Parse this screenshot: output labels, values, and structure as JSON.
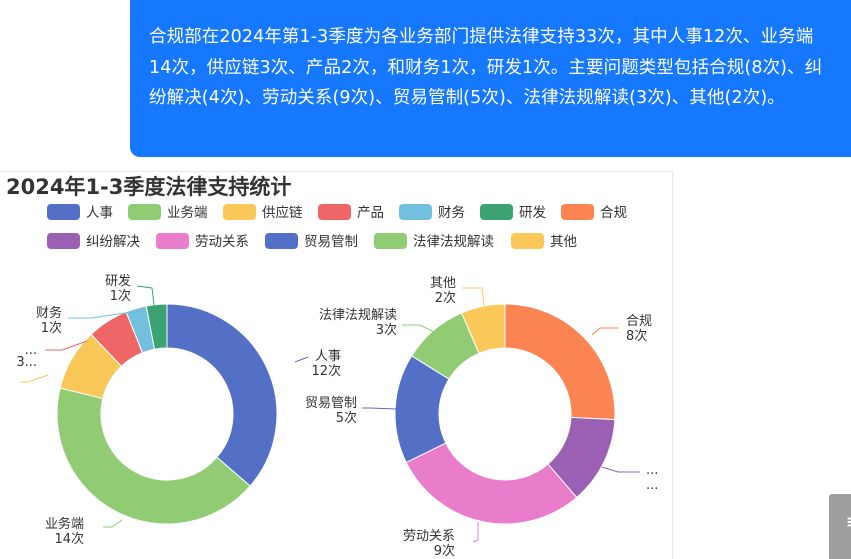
{
  "message": {
    "text": "合规部在2024年第1-3季度为各业务部门提供法律支持33次，其中人事12次、业务端14次，供应链3次、产品2次，和财务1次，研发1次。主要问题类型包括合规(8次)、纠纷解决(4次)、劳动关系(9次)、贸易管制(5次)、法律法规解读(3次)、其他(2次)。"
  },
  "chart_data": {
    "type": "pie",
    "title": "2024年1-3季度法律支持统计",
    "value_suffix": "次",
    "pies": [
      {
        "name": "",
        "slices": [
          {
            "label": "人事",
            "value": 12,
            "color": "#5470c6"
          },
          {
            "label": "业务端",
            "value": 14,
            "color": "#91cc75"
          },
          {
            "label": "供应链",
            "value": 3,
            "color": "#fac858"
          },
          {
            "label": "产品",
            "value": 2,
            "color": "#ee6666"
          },
          {
            "label": "财务",
            "value": 1,
            "color": "#73c0de"
          },
          {
            "label": "研发",
            "value": 1,
            "color": "#3ba272"
          }
        ]
      },
      {
        "name": "",
        "slices": [
          {
            "label": "合规",
            "value": 8,
            "color": "#fc8452"
          },
          {
            "label": "纠纷解决",
            "value": 4,
            "color": "#9a60b4"
          },
          {
            "label": "劳动关系",
            "value": 9,
            "color": "#ea7ccc"
          },
          {
            "label": "贸易管制",
            "value": 5,
            "color": "#5470c6"
          },
          {
            "label": "法律法规解读",
            "value": 3,
            "color": "#91cc75"
          },
          {
            "label": "其他",
            "value": 2,
            "color": "#fac858"
          }
        ]
      }
    ],
    "legend": {
      "placement": "top",
      "rows": [
        [
          {
            "label": "人事",
            "color": "#5470c6"
          },
          {
            "label": "业务端",
            "color": "#91cc75"
          },
          {
            "label": "供应链",
            "color": "#fac858"
          },
          {
            "label": "产品",
            "color": "#ee6666"
          },
          {
            "label": "财务",
            "color": "#73c0de"
          },
          {
            "label": "研发",
            "color": "#3ba272"
          },
          {
            "label": "合规",
            "color": "#fc8452"
          }
        ],
        [
          {
            "label": "纠纷解决",
            "color": "#9a60b4"
          },
          {
            "label": "劳动关系",
            "color": "#ea7ccc"
          },
          {
            "label": "贸易管制",
            "color": "#5470c6"
          },
          {
            "label": "法律法规解读",
            "color": "#91cc75"
          },
          {
            "label": "其他",
            "color": "#fac858"
          }
        ]
      ]
    }
  },
  "side_button": {
    "label": "≡"
  }
}
